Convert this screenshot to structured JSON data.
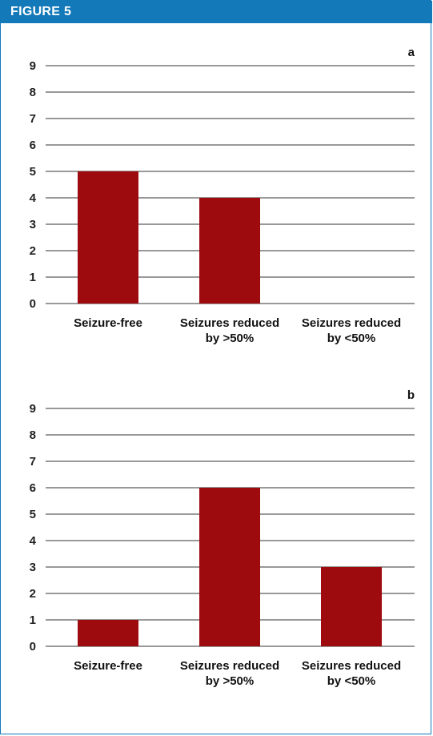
{
  "figure": {
    "title": "FIGURE 5",
    "header_color": "#1479b8"
  },
  "chart_data": [
    {
      "type": "bar",
      "panel_label": "a",
      "categories": [
        [
          "Seizure-free"
        ],
        [
          "Seizures reduced",
          "by >50%"
        ],
        [
          "Seizures reduced",
          "by <50%"
        ]
      ],
      "values": [
        5,
        4,
        0
      ],
      "ylim": [
        0,
        9
      ],
      "yticks": [
        0,
        1,
        2,
        3,
        4,
        5,
        6,
        7,
        8,
        9
      ],
      "grid": true,
      "bar_color": "#9e0b0f",
      "title": "",
      "xlabel": "",
      "ylabel": ""
    },
    {
      "type": "bar",
      "panel_label": "b",
      "categories": [
        [
          "Seizure-free"
        ],
        [
          "Seizures reduced",
          "by >50%"
        ],
        [
          "Seizures reduced",
          "by <50%"
        ]
      ],
      "values": [
        1,
        6,
        3
      ],
      "ylim": [
        0,
        9
      ],
      "yticks": [
        0,
        1,
        2,
        3,
        4,
        5,
        6,
        7,
        8,
        9
      ],
      "grid": true,
      "bar_color": "#9e0b0f",
      "title": "",
      "xlabel": "",
      "ylabel": ""
    }
  ]
}
